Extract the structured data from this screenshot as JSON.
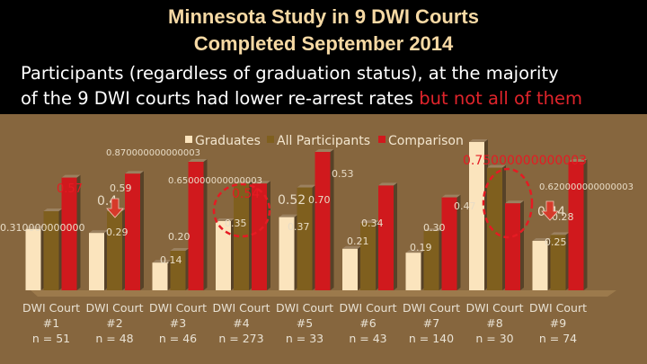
{
  "header": {
    "title_line1": "Minnesota Study in 9 DWI Courts",
    "title_line2": "Completed September 2014",
    "subtitle_line1": "Participants (regardless of graduation status), at the majority",
    "subtitle_line2_normal": "of the 9 DWI courts had lower re-arrest rates ",
    "subtitle_line2_highlight": "but not all of them"
  },
  "colors": {
    "background": "#000000",
    "panel": "#86663e",
    "title": "#f6d9a4",
    "highlight": "#e0242b",
    "graduates": "#fbe4bd",
    "all_participants": "#7f5f1e",
    "comparison": "#d0191d",
    "annotation": "#e51b23",
    "arrow": "#d63a2a"
  },
  "chart_data": {
    "type": "bar",
    "legend": [
      "Graduates",
      "All Participants",
      "Comparison"
    ],
    "legend_position": "top",
    "categories": [
      [
        "DWI Court",
        "#1",
        "n = 51"
      ],
      [
        "DWI Court",
        "#2",
        "n = 48"
      ],
      [
        "DWI Court",
        "#3",
        "n = 46"
      ],
      [
        "DWI Court",
        "#4",
        "n = 273"
      ],
      [
        "DWI Court",
        "#5",
        "n = 33"
      ],
      [
        "DWI Court",
        "#6",
        "n = 43"
      ],
      [
        "DWI Court",
        "#7",
        "n = 140"
      ],
      [
        "DWI Court",
        "#8",
        "n = 30"
      ],
      [
        "DWI Court",
        "#9",
        "n = 74"
      ]
    ],
    "series": [
      {
        "name": "Graduates",
        "values": [
          0.31,
          0.29,
          0.14,
          0.35,
          0.37,
          0.21,
          0.19,
          0.75,
          0.25
        ],
        "labels": [
          "0.310000000000",
          "0.29",
          "0.14",
          "0.35",
          "0.37",
          "0.21",
          "0.19",
          "0.75000000000003",
          "0.25"
        ]
      },
      {
        "name": "All Participants",
        "values": [
          0.4,
          0.4,
          0.2,
          0.54,
          0.52,
          0.34,
          0.3,
          0.62,
          0.28
        ],
        "labels": [
          "0.4",
          "0.4",
          "0.20",
          "0.54",
          "0.52",
          "0.34",
          "0.30",
          "0.620000000000003",
          "0.28"
        ]
      },
      {
        "name": "Comparison",
        "values": [
          0.57,
          0.59,
          0.65,
          0.54,
          0.7,
          0.53,
          0.47,
          0.44,
          0.65
        ],
        "labels": [
          "0.57",
          "0.59",
          "0.650000000000003",
          "0.54",
          "0.70",
          "0.53",
          "0.47",
          "0.44",
          "0.650000000000003"
        ]
      }
    ],
    "extra_labels": [
      "0.870000000000003"
    ],
    "ylim": [
      0,
      1
    ],
    "grid": false
  }
}
